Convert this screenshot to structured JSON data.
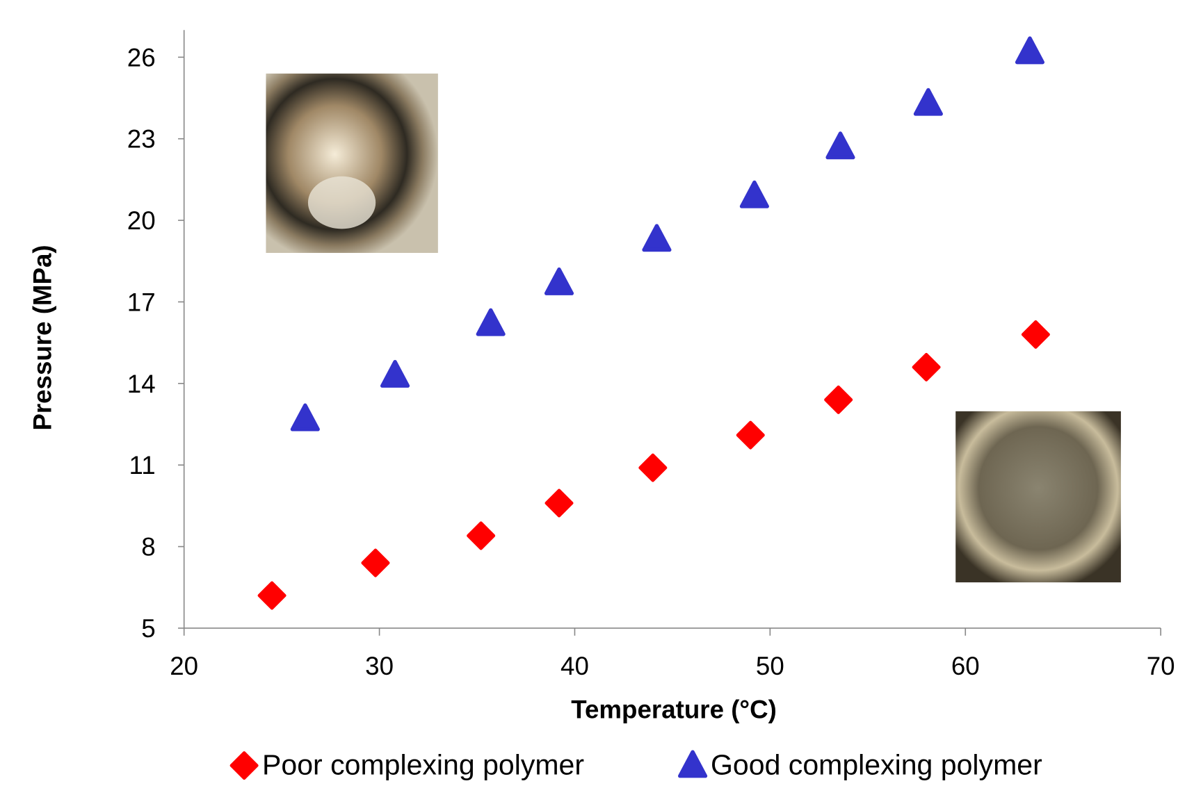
{
  "chart_data": {
    "type": "scatter",
    "x_label": "Temperature (°C)",
    "y_label": "Pressure (MPa)",
    "xlim": [
      20,
      70
    ],
    "xticks": [
      20,
      30,
      40,
      50,
      60,
      70
    ],
    "ylim": [
      5,
      27
    ],
    "yticks": [
      5,
      8,
      11,
      14,
      17,
      20,
      23,
      26
    ],
    "legend": "bottom",
    "series": [
      {
        "name": "Poor complexing polymer",
        "color": "#ff0000",
        "marker": "diamond",
        "x": [
          24.5,
          29.8,
          35.2,
          39.2,
          44.0,
          49.0,
          53.5,
          58.0,
          63.6
        ],
        "values": [
          6.2,
          7.4,
          8.4,
          9.6,
          10.9,
          12.1,
          13.4,
          14.6,
          15.8
        ]
      },
      {
        "name": "Good complexing polymer",
        "color": "#3333cc",
        "marker": "triangle",
        "x": [
          26.2,
          30.8,
          35.7,
          39.2,
          44.2,
          49.2,
          53.6,
          58.1,
          63.3
        ],
        "values": [
          12.7,
          14.3,
          16.2,
          17.7,
          19.3,
          20.9,
          22.7,
          24.3,
          26.2
        ]
      }
    ]
  }
}
